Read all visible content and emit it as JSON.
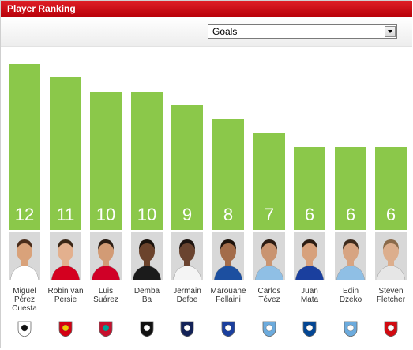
{
  "header": {
    "title": "Player Ranking"
  },
  "controls": {
    "metric": "Goals"
  },
  "chart_data": {
    "type": "bar",
    "title": "",
    "categories": [
      "Miguel Pérez Cuesta",
      "Robin van Persie",
      "Luis Suárez",
      "Demba Ba",
      "Jermain Defoe",
      "Marouane Fellaini",
      "Carlos Tévez",
      "Juan Mata",
      "Edin Dzeko",
      "Steven Fletcher"
    ],
    "values": [
      12,
      11,
      10,
      10,
      9,
      8,
      7,
      6,
      6,
      6
    ],
    "ylim": [
      0,
      12
    ]
  },
  "players": [
    {
      "name_lines": [
        "Miguel",
        "Pérez",
        "Cuesta"
      ],
      "value": "12",
      "club": "swansea-city",
      "kit": "#ffffff",
      "skin": "#d9a27a",
      "hair": "#4a2c1a"
    },
    {
      "name_lines": [
        "Robin van",
        "Persie"
      ],
      "value": "11",
      "club": "manchester-united",
      "kit": "#d4001f",
      "skin": "#e3b08e",
      "hair": "#3a2616"
    },
    {
      "name_lines": [
        "Luis",
        "Suárez"
      ],
      "value": "10",
      "club": "liverpool",
      "kit": "#d00027",
      "skin": "#d29b75",
      "hair": "#2b1d14"
    },
    {
      "name_lines": [
        "Demba",
        "Ba"
      ],
      "value": "10",
      "club": "newcastle-united",
      "kit": "#1b1b1b",
      "skin": "#6b432c",
      "hair": "#1a120c"
    },
    {
      "name_lines": [
        "Jermain",
        "Defoe"
      ],
      "value": "9",
      "club": "tottenham-hotspur",
      "kit": "#f4f4f4",
      "skin": "#6a4430",
      "hair": "#1e1410"
    },
    {
      "name_lines": [
        "Marouane",
        "Fellaini"
      ],
      "value": "8",
      "club": "everton",
      "kit": "#1c4fa0",
      "skin": "#a36c4a",
      "hair": "#1e130c"
    },
    {
      "name_lines": [
        "Carlos",
        "Tévez"
      ],
      "value": "7",
      "club": "manchester-city",
      "kit": "#8fbfe5",
      "skin": "#c99471",
      "hair": "#2c1c13"
    },
    {
      "name_lines": [
        "Juan",
        "Mata"
      ],
      "value": "6",
      "club": "chelsea",
      "kit": "#1a3f9e",
      "skin": "#d7a17c",
      "hair": "#2c1d13"
    },
    {
      "name_lines": [
        "Edin",
        "Dzeko"
      ],
      "value": "6",
      "club": "manchester-city",
      "kit": "#8fbfe5",
      "skin": "#d7a482",
      "hair": "#3d2a1c"
    },
    {
      "name_lines": [
        "Steven",
        "Fletcher"
      ],
      "value": "6",
      "club": "sunderland",
      "kit": "#e6e6e6",
      "skin": "#dcae8d",
      "hair": "#8a6a4a"
    }
  ],
  "crest_colors": {
    "swansea-city": [
      "#ffffff",
      "#111111"
    ],
    "manchester-united": [
      "#d40012",
      "#f6c700"
    ],
    "liverpool": [
      "#c8102e",
      "#00a398"
    ],
    "newcastle-united": [
      "#111111",
      "#ffffff"
    ],
    "tottenham-hotspur": [
      "#132257",
      "#ffffff"
    ],
    "everton": [
      "#1a3f9e",
      "#ffffff"
    ],
    "manchester-city": [
      "#6cabdd",
      "#ffffff"
    ],
    "chelsea": [
      "#034694",
      "#ffffff"
    ],
    "sunderland": [
      "#d20a11",
      "#ffffff"
    ]
  }
}
